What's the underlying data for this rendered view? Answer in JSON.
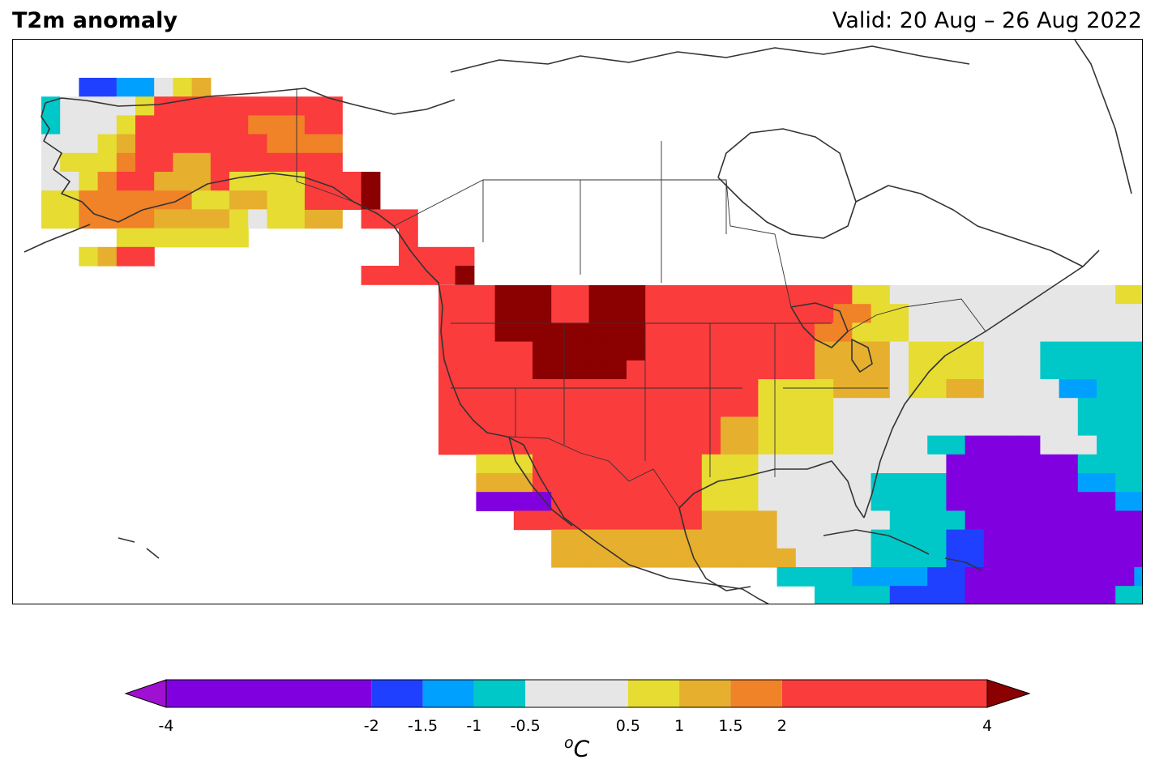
{
  "title": "T2m anomaly",
  "valid_label": "Valid: 20 Aug – 26 Aug 2022",
  "colorbar": {
    "unit_sup": "o",
    "unit": "C",
    "ticks": [
      "-4",
      "-2",
      "-1.5",
      "-1",
      "-0.5",
      "0.5",
      "1",
      "1.5",
      "2",
      "4"
    ],
    "levels": [
      -4,
      -2,
      -1.5,
      -1,
      -0.5,
      0.5,
      1,
      1.5,
      2,
      4
    ],
    "colors": [
      "#8000e0",
      "#2040ff",
      "#00a0ff",
      "#00c8c8",
      "#e6e6e6",
      "#e6dc32",
      "#e6af2d",
      "#f08228",
      "#fa3c3c"
    ],
    "under_color": "#a010d0",
    "over_color": "#8b0000",
    "extend": "both"
  },
  "map": {
    "region": "North America",
    "variable": "2 m temperature anomaly",
    "palette": {
      "P": "#8000e0",
      "B": "#2040ff",
      "L": "#00a0ff",
      "C": "#00c8c8",
      "G": "#e6e6e6",
      "Y": "#e6dc32",
      "O": "#e6af2d",
      "R": "#f08228",
      "E": "#fa3c3c",
      "D": "#8b0000"
    },
    "regions": [
      {
        "name": "Alaska",
        "rows": [
          "..BBLLGYO.......",
          "CGGGGYEEEEEEEEEE",
          "CGGGYEEEEEERRREE",
          "GGGYOEEEEEEERRRR",
          "GYYYREEOOEEEEEEE",
          "GGYREEOOOEYYYYYE",
          "YYRRRRRRYYOOYYRR",
          "YYRRRROOOOYGYYOO",
          "....YYYYYYY.....",
          "..YOEE.........."
        ]
      },
      {
        "name": "Southeast Alaska",
        "rows": [
          "EEED.....",
          "EEED.....",
          "...EEE...",
          ".....E...",
          ".....EEEE",
          "...EEEEED",
          "........."
        ]
      },
      {
        "name": "Contiguous US",
        "rows": [
          "EEEDDDEEDDDEEEEEEEEEEEYYGGGGGGGGGGGGYYYY........................",
          "EEEDDDEEDDDEEEEEEEEEERRYYGGGGGGGGGGGGGYYYYYY....................",
          "EEEDDDDDDDDEEEEEEEEERRYYYGGGGGGGGGGGGGGGYYGYYYOO...........EEEEE",
          "EEEEEDDDDDDEEEEEEEEEOOOOGYYYYGGGCCCCCCGGGGGGGGYYOO..EEEEEEEEEEEE",
          "EEEEEDDDDDEEEEEEEEEEOOOOGYYYYGGGCCCCCCGGGGGGGYYYOOEEEEEEEEEEEEEE",
          "EEEEEEEEEEEEEEEEEYYYYOOOGYYOOGGGGLLCCCCGGCCCCGGGGOOEEEEEEEEEEEE.",
          "EEEEEEEEEEEEEEEEEYYYYGGGGGGGGGGGGGCCCCCCCCCCCGGGGGGYYOOEEEEEEE..",
          "EEEEEEEEEEEEEEEOOYYYYGGGGGGGGGGGGGCCCCCCCCCCGGGGGGGGGYYEEEEE....",
          "EEEEEEEEEEEEEEEOOYYYYGGGGGCCPPPPGGGCCCCCCCGGGGGGGGGGGGGEEEE.....",
          "..YYYEEEEEEEEEYYYGGGGGGGGGGPPPPPPPCCCCCCCCGGGGGGGGGGGGGGYY......",
          "..OOOEEEEEEEEEYYYGGGGGGCCCCPPPPPPPLLCCCCCCGGGGGGGGGGGGGGYY......",
          "..PPPPEEEEEEEEYYYGGGGGGCCCCPPPPPPPPPLLLLCCCCCCGGGGGGGGGGYY......",
          "....EEEEEEEEEEOOOOGGGGGGCCCCPPPPPPPPPPLLLLCCCCGGGGGGGGGYY.......",
          "......OOOOOOOOOOOOGGGGGCCCCBBPPPPPPPPPLLLLLLGGGGGGGGGGGG........",
          "......OOOOOOOOOOOOOGGGGCCCCBBPPPPPPPPPBBBBBLLLLLLGGGGGGGG.......",
          "..................CCCCLLLLBBPPPPPPPPPLLLLLLLLLPPBBLLLLCC........",
          "....................CCCCBBBBPPPPPPPPCCCCLLLLLBBPPPPLLLCC........",
          "..........................CCCCCCCCCCCCCCCCBBBBBBCCCCGGGGYY......",
          "..........................CCCCCCCCCCLLLLLGGGGGCCCCCCCGGYY.......",
          "..............................CCCCCCCGGGGGGGGGGGCCCCCCC..YY.....",
          "................................LLLLLGGGGGGG.............YYYY....",
          ".................................LLLGGGGG................YYYY...",
          "..................................YYYY...................OOOOOO.",
          "..................................YYYY...................OOOOOO.",
          "..........................................................OOOO.."
        ]
      }
    ]
  }
}
